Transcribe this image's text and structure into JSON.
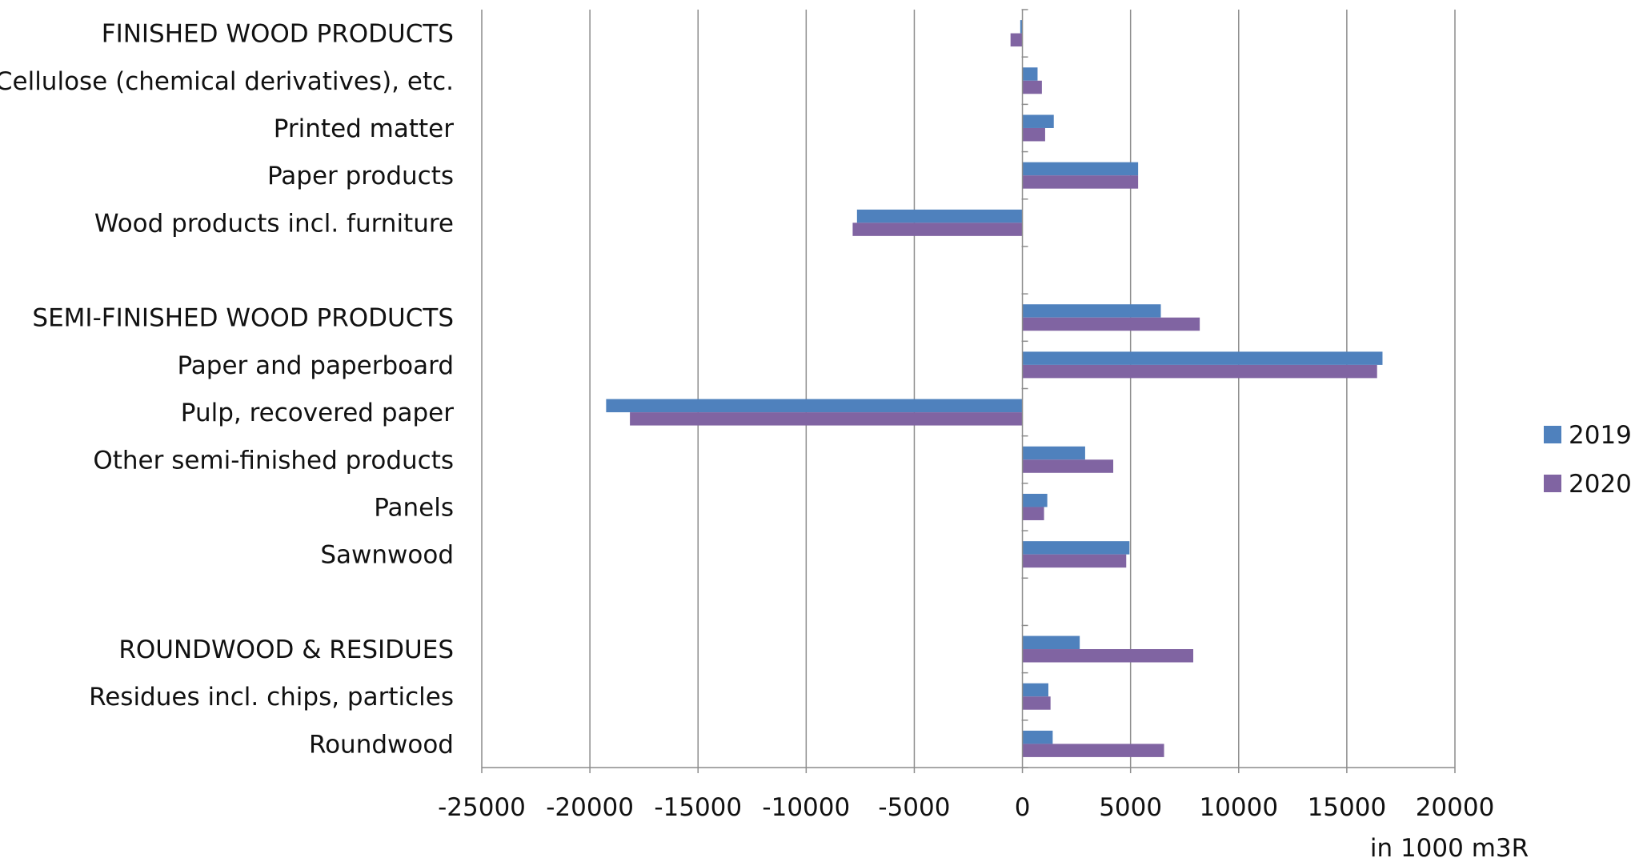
{
  "chart_data": {
    "type": "bar",
    "orientation": "horizontal",
    "categories": [
      "FINISHED WOOD PRODUCTS",
      "Cellulose (chemical derivatives), etc.",
      "Printed matter",
      "Paper products",
      "Wood products incl. furniture",
      "",
      "SEMI-FINISHED WOOD PRODUCTS",
      "Paper and paperboard",
      "Pulp, recovered paper",
      "Other semi-finished products",
      "Panels",
      "Sawnwood",
      "",
      "ROUNDWOOD & RESIDUES",
      "Residues incl. chips, particles",
      "Roundwood"
    ],
    "series": [
      {
        "name": "2019",
        "color": "#4f81bd",
        "values": [
          -100,
          700,
          1450,
          5350,
          -7650,
          null,
          6400,
          16650,
          -19250,
          2900,
          1150,
          4950,
          null,
          2650,
          1200,
          1400
        ]
      },
      {
        "name": "2020",
        "color": "#8064a2",
        "values": [
          -550,
          900,
          1050,
          5350,
          -7850,
          null,
          8200,
          16400,
          -18150,
          4200,
          1000,
          4800,
          null,
          7900,
          1300,
          6550
        ]
      }
    ],
    "xlim": [
      -25000,
      20000
    ],
    "xticks": [
      "-25000",
      "-20000",
      "-15000",
      "-10000",
      "-5000",
      "0",
      "5000",
      "10000",
      "15000",
      "20000"
    ],
    "xlabel": "in 1000 m3R",
    "grid": "vertical",
    "legend_position": "right"
  }
}
